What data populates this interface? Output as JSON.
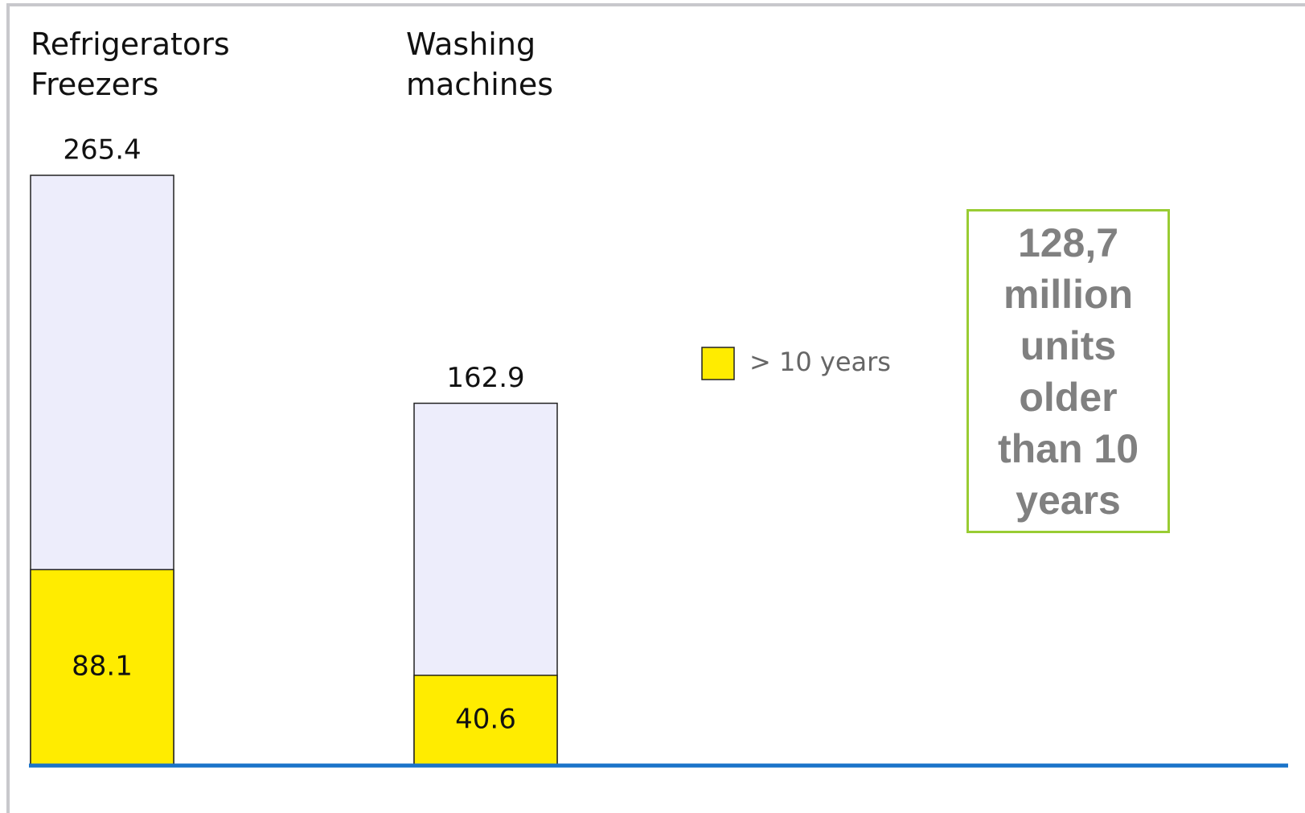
{
  "chart_data": {
    "type": "bar",
    "categories": [
      "Refrigerators Freezers",
      "Washing machines"
    ],
    "totals": [
      265.4,
      162.9
    ],
    "total_color": "#ededfb",
    "series": [
      {
        "name": "> 10 years",
        "color": "#ffec00",
        "values": [
          88.1,
          40.6
        ]
      }
    ],
    "annotation": "128,7 million units older than 10 years",
    "annotation_color": "#808080",
    "annotation_border": "#99cc33",
    "baseline_color": "#1a73c9"
  }
}
